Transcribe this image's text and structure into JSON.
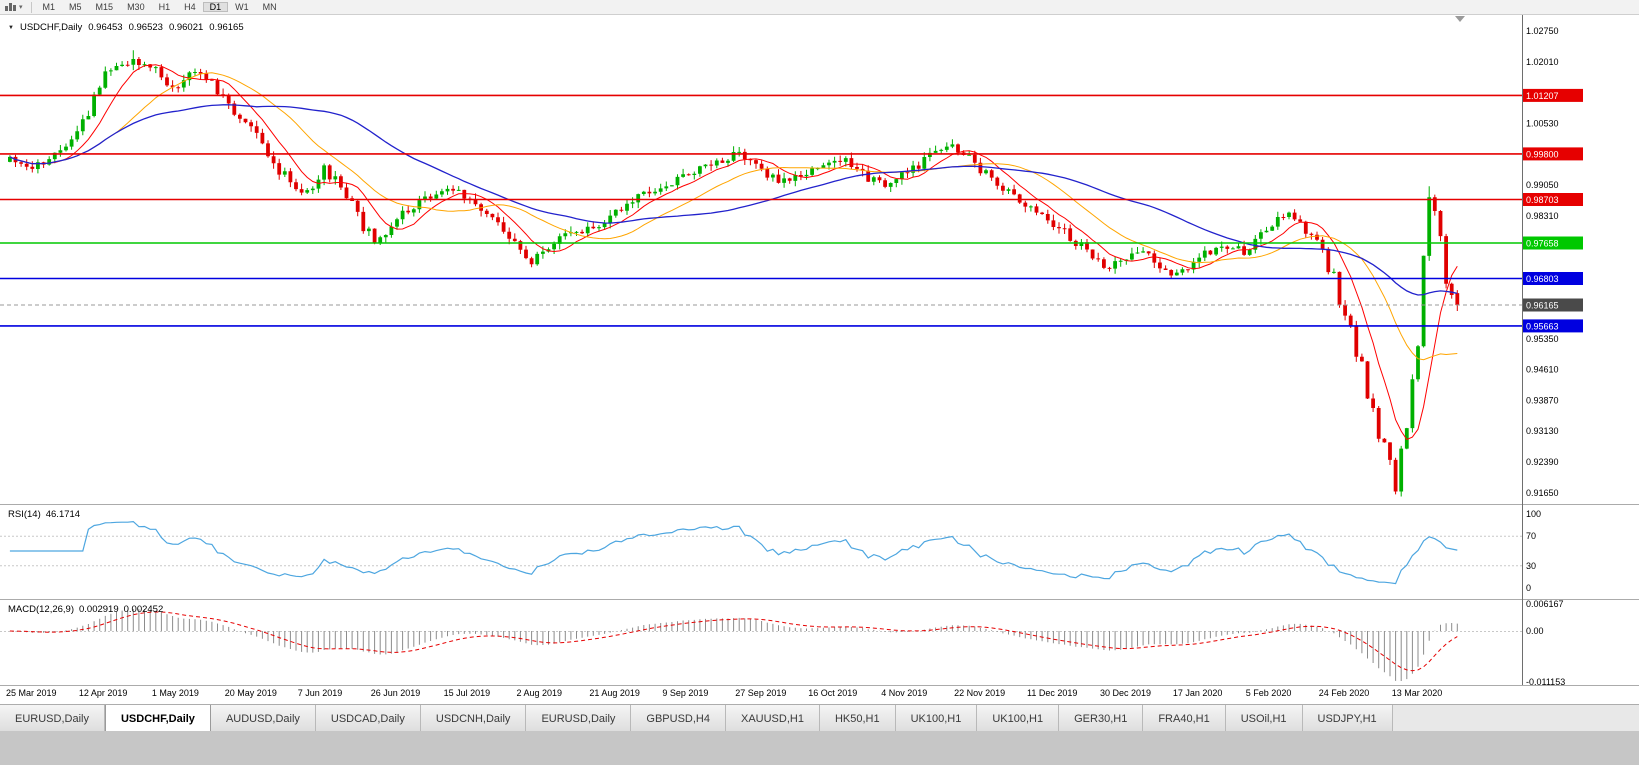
{
  "toolbar": {
    "timeframes": [
      "M1",
      "M5",
      "M15",
      "M30",
      "H1",
      "H4",
      "D1",
      "W1",
      "MN"
    ],
    "active": "D1"
  },
  "header": {
    "symbol": "USDCHF,Daily",
    "open": "0.96453",
    "high": "0.96523",
    "low": "0.96021",
    "close": "0.96165"
  },
  "chart_data": {
    "type": "candlestick",
    "symbol": "USDCHF",
    "timeframe": "Daily",
    "last_ohlc": {
      "o": 0.96453,
      "h": 0.96523,
      "l": 0.96021,
      "c": 0.96165
    },
    "current_price": 0.96165,
    "current_price_label": "0.96165",
    "view": {
      "top": 1.0314,
      "bottom": 0.9138
    },
    "price_axis_ticks": [
      "1.02750",
      "1.02010",
      "1.01270",
      "1.00530",
      "0.99790",
      "0.99050",
      "0.98310",
      "0.97570",
      "0.96830",
      "0.96090",
      "0.95350",
      "0.94610",
      "0.93870",
      "0.93130",
      "0.92390",
      "0.91650"
    ],
    "levels": [
      {
        "value": 1.01207,
        "label": "1.01207",
        "color": "#e60000"
      },
      {
        "value": 0.998,
        "label": "0.99800",
        "color": "#e60000"
      },
      {
        "value": 0.98703,
        "label": "0.98703",
        "color": "#e60000"
      },
      {
        "value": 0.97658,
        "label": "0.97658",
        "color": "#00c800"
      },
      {
        "value": 0.96803,
        "label": "0.96803",
        "color": "#0000e0"
      },
      {
        "value": 0.95663,
        "label": "0.95663",
        "color": "#0000e0"
      }
    ],
    "date_labels": [
      "25 Mar 2019",
      "12 Apr 2019",
      "1 May 2019",
      "20 May 2019",
      "7 Jun 2019",
      "26 Jun 2019",
      "15 Jul 2019",
      "2 Aug 2019",
      "21 Aug 2019",
      "9 Sep 2019",
      "27 Sep 2019",
      "16 Oct 2019",
      "4 Nov 2019",
      "22 Nov 2019",
      "11 Dec 2019",
      "30 Dec 2019",
      "17 Jan 2020",
      "5 Feb 2020",
      "24 Feb 2020",
      "13 Mar 2020"
    ],
    "candles_total": 259,
    "price_anchors": [
      [
        0,
        0.9965
      ],
      [
        4,
        0.9945
      ],
      [
        8,
        0.9985
      ],
      [
        12,
        1.003
      ],
      [
        15,
        1.012
      ],
      [
        18,
        1.019
      ],
      [
        22,
        1.0205
      ],
      [
        26,
        1.0185
      ],
      [
        29,
        1.014
      ],
      [
        33,
        1.0175
      ],
      [
        36,
        1.016
      ],
      [
        39,
        1.009
      ],
      [
        43,
        1.0035
      ],
      [
        47,
        0.996
      ],
      [
        50,
        0.9905
      ],
      [
        53,
        0.989
      ],
      [
        56,
        0.9945
      ],
      [
        59,
        0.99
      ],
      [
        62,
        0.983
      ],
      [
        65,
        0.9762
      ],
      [
        68,
        0.98
      ],
      [
        71,
        0.9845
      ],
      [
        74,
        0.987
      ],
      [
        78,
        0.9905
      ],
      [
        81,
        0.988
      ],
      [
        84,
        0.9845
      ],
      [
        88,
        0.979
      ],
      [
        91,
        0.9745
      ],
      [
        93,
        0.9715
      ],
      [
        96,
        0.976
      ],
      [
        100,
        0.979
      ],
      [
        104,
        0.98
      ],
      [
        108,
        0.9845
      ],
      [
        112,
        0.988
      ],
      [
        117,
        0.9905
      ],
      [
        121,
        0.9935
      ],
      [
        126,
        0.996
      ],
      [
        130,
        0.9985
      ],
      [
        133,
        0.9945
      ],
      [
        137,
        0.9915
      ],
      [
        141,
        0.993
      ],
      [
        145,
        0.995
      ],
      [
        149,
        0.9965
      ],
      [
        152,
        0.993
      ],
      [
        156,
        0.99
      ],
      [
        160,
        0.9935
      ],
      [
        164,
        0.9975
      ],
      [
        168,
        1.0
      ],
      [
        172,
        0.996
      ],
      [
        176,
        0.9905
      ],
      [
        180,
        0.9865
      ],
      [
        184,
        0.9835
      ],
      [
        188,
        0.979
      ],
      [
        192,
        0.9745
      ],
      [
        195,
        0.97
      ],
      [
        198,
        0.9725
      ],
      [
        202,
        0.9745
      ],
      [
        205,
        0.971
      ],
      [
        208,
        0.969
      ],
      [
        212,
        0.973
      ],
      [
        216,
        0.9765
      ],
      [
        220,
        0.9745
      ],
      [
        224,
        0.98
      ],
      [
        228,
        0.984
      ],
      [
        231,
        0.9795
      ],
      [
        234,
        0.9755
      ],
      [
        237,
        0.964
      ],
      [
        240,
        0.951
      ],
      [
        243,
        0.937
      ],
      [
        245,
        0.927
      ],
      [
        247,
        0.919
      ],
      [
        249,
        0.933
      ],
      [
        251,
        0.956
      ],
      [
        253,
        0.988
      ],
      [
        254,
        0.9858
      ],
      [
        255,
        0.979
      ],
      [
        256,
        0.97
      ],
      [
        257,
        0.9648
      ],
      [
        258,
        0.96165
      ]
    ],
    "forced_extremes": [
      {
        "i": 22,
        "h": 1.0229
      },
      {
        "i": 247,
        "l": 0.9161
      },
      {
        "i": 253,
        "h": 0.9902
      }
    ],
    "ma": [
      {
        "period": 8,
        "color": "#ff0000",
        "width": 1
      },
      {
        "period": 20,
        "color": "#ffa500",
        "width": 1
      },
      {
        "period": 45,
        "color": "#2222cc",
        "width": 1.3
      }
    ],
    "colors": {
      "up": "#00b000",
      "down": "#e00000",
      "bg": "#ffffff",
      "axis_text": "#000000"
    },
    "rsi": {
      "label": "RSI(14)",
      "value": "46.1714",
      "period": 14,
      "ticks": [
        "100",
        "70",
        "30",
        "0"
      ],
      "levels": [
        70,
        30
      ],
      "color": "#4da6e0"
    },
    "macd": {
      "label": "MACD(12,26,9)",
      "value_main": "0.002919",
      "value_signal": "0.002452",
      "fast": 12,
      "slow": 26,
      "signal": 9,
      "ticks": [
        "0.006167",
        "0.00",
        "-0.011153"
      ],
      "hist_color": "#8c8c8c",
      "signal_color": "#e60000"
    }
  },
  "tabs": {
    "items": [
      {
        "label": "EURUSD,Daily",
        "active": false
      },
      {
        "label": "USDCHF,Daily",
        "active": true
      },
      {
        "label": "AUDUSD,Daily",
        "active": false
      },
      {
        "label": "USDCAD,Daily",
        "active": false
      },
      {
        "label": "USDCNH,Daily",
        "active": false
      },
      {
        "label": "EURUSD,Daily",
        "active": false
      },
      {
        "label": "GBPUSD,H4",
        "active": false
      },
      {
        "label": "XAUUSD,H1",
        "active": false
      },
      {
        "label": "HK50,H1",
        "active": false
      },
      {
        "label": "UK100,H1",
        "active": false
      },
      {
        "label": "UK100,H1",
        "active": false
      },
      {
        "label": "GER30,H1",
        "active": false
      },
      {
        "label": "FRA40,H1",
        "active": false
      },
      {
        "label": "USOil,H1",
        "active": false
      },
      {
        "label": "USDJPY,H1",
        "active": false
      }
    ]
  }
}
